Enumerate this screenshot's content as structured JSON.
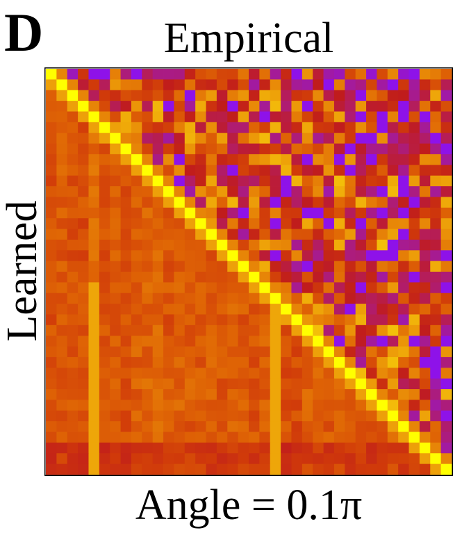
{
  "panel_label": "D",
  "chart_data": {
    "type": "heatmap",
    "title": "Empirical",
    "xlabel": "Angle = 0.1π",
    "ylabel": "Learned",
    "size": 38,
    "diagonal_value": 1.0,
    "upper_triangle": "Empirical",
    "lower_triangle": "Learned",
    "colorscale": [
      "#8b10f5",
      "#a01aa8",
      "#b51d5a",
      "#c01c1c",
      "#d03a0a",
      "#df6405",
      "#ea9008",
      "#f2b80a",
      "#ffff00"
    ],
    "row_means": [
      0.62,
      0.6,
      0.62,
      0.62,
      0.61,
      0.62,
      0.61,
      0.62,
      0.62,
      0.64,
      0.62,
      0.61,
      0.62,
      0.62,
      0.62,
      0.63,
      0.63,
      0.61,
      0.61,
      0.61,
      0.64,
      0.63,
      0.63,
      0.61,
      0.61,
      0.64,
      0.64,
      0.63,
      0.63,
      0.64,
      0.64,
      0.63,
      0.62,
      0.62,
      0.62,
      0.4,
      0.42,
      0.46
    ],
    "col_means": [
      0.52,
      0.56,
      0.52,
      0.5,
      0.66,
      0.52,
      0.56,
      0.5,
      0.58,
      0.6,
      0.62,
      0.54,
      0.58,
      0.56,
      0.55,
      0.56,
      0.54,
      0.58,
      0.55,
      0.53,
      0.56,
      0.62,
      0.5,
      0.48,
      0.58,
      0.6,
      0.55,
      0.57,
      0.56,
      0.58,
      0.55,
      0.57,
      0.6,
      0.52,
      0.54,
      0.56,
      0.54,
      0.52
    ],
    "upper_row_level": [
      0.3,
      0.42,
      0.42,
      0.42,
      0.44,
      0.44,
      0.46,
      0.46,
      0.46,
      0.5,
      0.5,
      0.44,
      0.44,
      0.46,
      0.46,
      0.48,
      0.48,
      0.44,
      0.44,
      0.46,
      0.46,
      0.44,
      0.44,
      0.44,
      0.44,
      0.44,
      0.44,
      0.44,
      0.44,
      0.44,
      0.46,
      0.46,
      0.46,
      0.46,
      0.46,
      0.46,
      0.46,
      0.46
    ]
  }
}
